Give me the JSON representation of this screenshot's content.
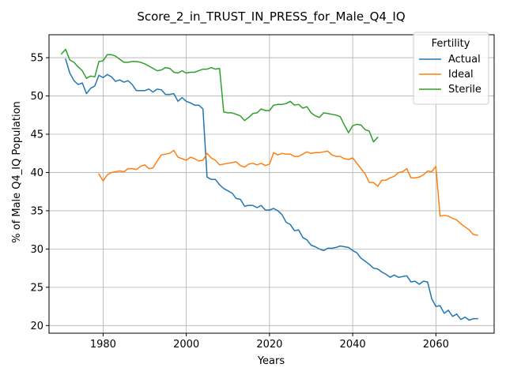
{
  "chart_data": {
    "type": "line",
    "title": "Score_2_in_TRUST_IN_PRESS_for_Male_Q4_IQ",
    "xlabel": "Years",
    "ylabel": "% of Male Q4_IQ Population",
    "xlim": [
      1967,
      2074
    ],
    "ylim": [
      19.0,
      58.0
    ],
    "xticks": [
      1980,
      2000,
      2020,
      2040,
      2060
    ],
    "yticks": [
      20,
      25,
      30,
      35,
      40,
      45,
      50,
      55
    ],
    "grid": true,
    "legend": {
      "title": "Fertility",
      "placement": "top-right"
    },
    "series": [
      {
        "name": "Actual",
        "color": "#1f77b4",
        "x": [
          1971,
          1972,
          1973,
          1974,
          1975,
          1976,
          1977,
          1978,
          1979,
          1980,
          1981,
          1982,
          1983,
          1984,
          1985,
          1986,
          1987,
          1988,
          1989,
          1990,
          1991,
          1992,
          1993,
          1994,
          1995,
          1996,
          1997,
          1998,
          1999,
          2000,
          2001,
          2002,
          2003,
          2004,
          2005,
          2006,
          2007,
          2008,
          2009,
          2010,
          2011,
          2012,
          2013,
          2014,
          2015,
          2016,
          2017,
          2018,
          2019,
          2020,
          2021,
          2022,
          2023,
          2024,
          2025,
          2026,
          2027,
          2028,
          2029,
          2030,
          2031,
          2032,
          2033,
          2034,
          2035,
          2036,
          2037,
          2038,
          2039,
          2040,
          2041,
          2042,
          2043,
          2044,
          2045,
          2046,
          2047,
          2048,
          2049,
          2050,
          2051,
          2052,
          2053,
          2054,
          2055,
          2056,
          2057,
          2058,
          2059,
          2060,
          2061,
          2062,
          2063,
          2064,
          2065,
          2066,
          2067,
          2068,
          2069,
          2070
        ],
        "y": [
          54.8,
          53.0,
          52.0,
          51.5,
          51.7,
          50.3,
          51.0,
          51.3,
          52.7,
          52.4,
          52.8,
          52.5,
          51.9,
          52.1,
          51.8,
          52.0,
          51.5,
          50.7,
          50.7,
          50.7,
          50.9,
          50.5,
          50.9,
          50.8,
          50.2,
          50.2,
          50.3,
          49.3,
          49.8,
          49.3,
          49.1,
          48.8,
          48.8,
          48.3,
          39.4,
          39.1,
          39.1,
          38.4,
          37.9,
          37.6,
          37.3,
          36.6,
          36.5,
          35.6,
          35.7,
          35.7,
          35.4,
          35.7,
          35.1,
          35.1,
          35.3,
          35.0,
          34.5,
          33.5,
          33.2,
          32.4,
          32.5,
          31.5,
          31.2,
          30.5,
          30.3,
          30.0,
          29.8,
          30.1,
          30.1,
          30.2,
          30.4,
          30.3,
          30.2,
          29.8,
          29.5,
          28.8,
          28.4,
          28.0,
          27.5,
          27.4,
          27.0,
          26.7,
          26.3,
          26.6,
          26.3,
          26.4,
          26.5,
          25.7,
          25.8,
          25.4,
          25.8,
          25.7,
          23.5,
          22.5,
          22.6,
          21.6,
          22.0,
          21.2,
          21.5,
          20.8,
          21.1,
          20.7,
          20.9,
          20.9
        ]
      },
      {
        "name": "Ideal",
        "color": "#ff7f0e",
        "x": [
          1979,
          1980,
          1981,
          1982,
          1983,
          1984,
          1985,
          1986,
          1987,
          1988,
          1989,
          1990,
          1991,
          1992,
          1993,
          1994,
          1995,
          1996,
          1997,
          1998,
          1999,
          2000,
          2001,
          2002,
          2003,
          2004,
          2005,
          2006,
          2007,
          2008,
          2009,
          2010,
          2011,
          2012,
          2013,
          2014,
          2015,
          2016,
          2017,
          2018,
          2019,
          2020,
          2021,
          2022,
          2023,
          2024,
          2025,
          2026,
          2027,
          2028,
          2029,
          2030,
          2031,
          2032,
          2033,
          2034,
          2035,
          2036,
          2037,
          2038,
          2039,
          2040,
          2041,
          2042,
          2043,
          2044,
          2045,
          2046,
          2047,
          2048,
          2049,
          2050,
          2051,
          2052,
          2053,
          2054,
          2055,
          2056,
          2057,
          2058,
          2059,
          2060,
          2061,
          2062,
          2063,
          2064,
          2065,
          2066,
          2067,
          2068,
          2069,
          2070
        ],
        "y": [
          39.8,
          38.9,
          39.7,
          40.0,
          40.1,
          40.2,
          40.1,
          40.5,
          40.5,
          40.4,
          40.8,
          41.0,
          40.5,
          40.6,
          41.5,
          42.3,
          42.4,
          42.5,
          42.9,
          42.0,
          41.8,
          41.6,
          42.0,
          41.8,
          41.5,
          41.6,
          42.5,
          41.9,
          41.6,
          41.0,
          41.1,
          41.2,
          41.3,
          41.4,
          40.9,
          40.7,
          41.1,
          41.2,
          41.0,
          41.2,
          40.9,
          41.1,
          42.6,
          42.3,
          42.5,
          42.4,
          42.4,
          42.1,
          42.1,
          42.4,
          42.7,
          42.5,
          42.6,
          42.6,
          42.7,
          42.8,
          42.3,
          42.1,
          42.1,
          41.8,
          41.7,
          41.9,
          41.2,
          40.5,
          39.8,
          38.7,
          38.7,
          38.2,
          39.0,
          39.0,
          39.3,
          39.5,
          40.0,
          40.1,
          40.5,
          39.3,
          39.3,
          39.4,
          39.7,
          40.2,
          40.1,
          40.8,
          34.3,
          34.4,
          34.3,
          34.0,
          33.8,
          33.3,
          32.9,
          32.5,
          31.9,
          31.8
        ]
      },
      {
        "name": "Sterile",
        "color": "#2ca02c",
        "x": [
          1970,
          1971,
          1972,
          1973,
          1974,
          1975,
          1976,
          1977,
          1978,
          1979,
          1980,
          1981,
          1982,
          1983,
          1984,
          1985,
          1986,
          1987,
          1988,
          1989,
          1990,
          1991,
          1992,
          1993,
          1994,
          1995,
          1996,
          1997,
          1998,
          1999,
          2000,
          2001,
          2002,
          2003,
          2004,
          2005,
          2006,
          2007,
          2008,
          2009,
          2010,
          2011,
          2012,
          2013,
          2014,
          2015,
          2016,
          2017,
          2018,
          2019,
          2020,
          2021,
          2022,
          2023,
          2024,
          2025,
          2026,
          2027,
          2028,
          2029,
          2030,
          2031,
          2032,
          2033,
          2034,
          2035,
          2036,
          2037,
          2038,
          2039,
          2040,
          2041,
          2042,
          2043,
          2044,
          2045,
          2046
        ],
        "y": [
          55.5,
          56.1,
          54.7,
          54.4,
          53.8,
          53.3,
          52.3,
          52.6,
          52.5,
          54.5,
          54.6,
          55.4,
          55.4,
          55.2,
          54.8,
          54.4,
          54.4,
          54.5,
          54.5,
          54.4,
          54.2,
          53.9,
          53.6,
          53.3,
          53.4,
          53.7,
          53.6,
          53.1,
          53.0,
          53.3,
          53.0,
          53.1,
          53.1,
          53.3,
          53.5,
          53.5,
          53.7,
          53.5,
          53.6,
          47.9,
          47.8,
          47.8,
          47.6,
          47.4,
          46.8,
          47.2,
          47.7,
          47.8,
          48.3,
          48.1,
          48.1,
          48.8,
          48.9,
          48.9,
          49.0,
          49.3,
          48.8,
          48.9,
          48.4,
          48.6,
          47.8,
          47.4,
          47.2,
          47.8,
          47.7,
          47.6,
          47.5,
          47.3,
          46.2,
          45.2,
          46.1,
          46.3,
          46.2,
          45.6,
          45.4,
          44.0,
          44.6
        ]
      }
    ]
  }
}
